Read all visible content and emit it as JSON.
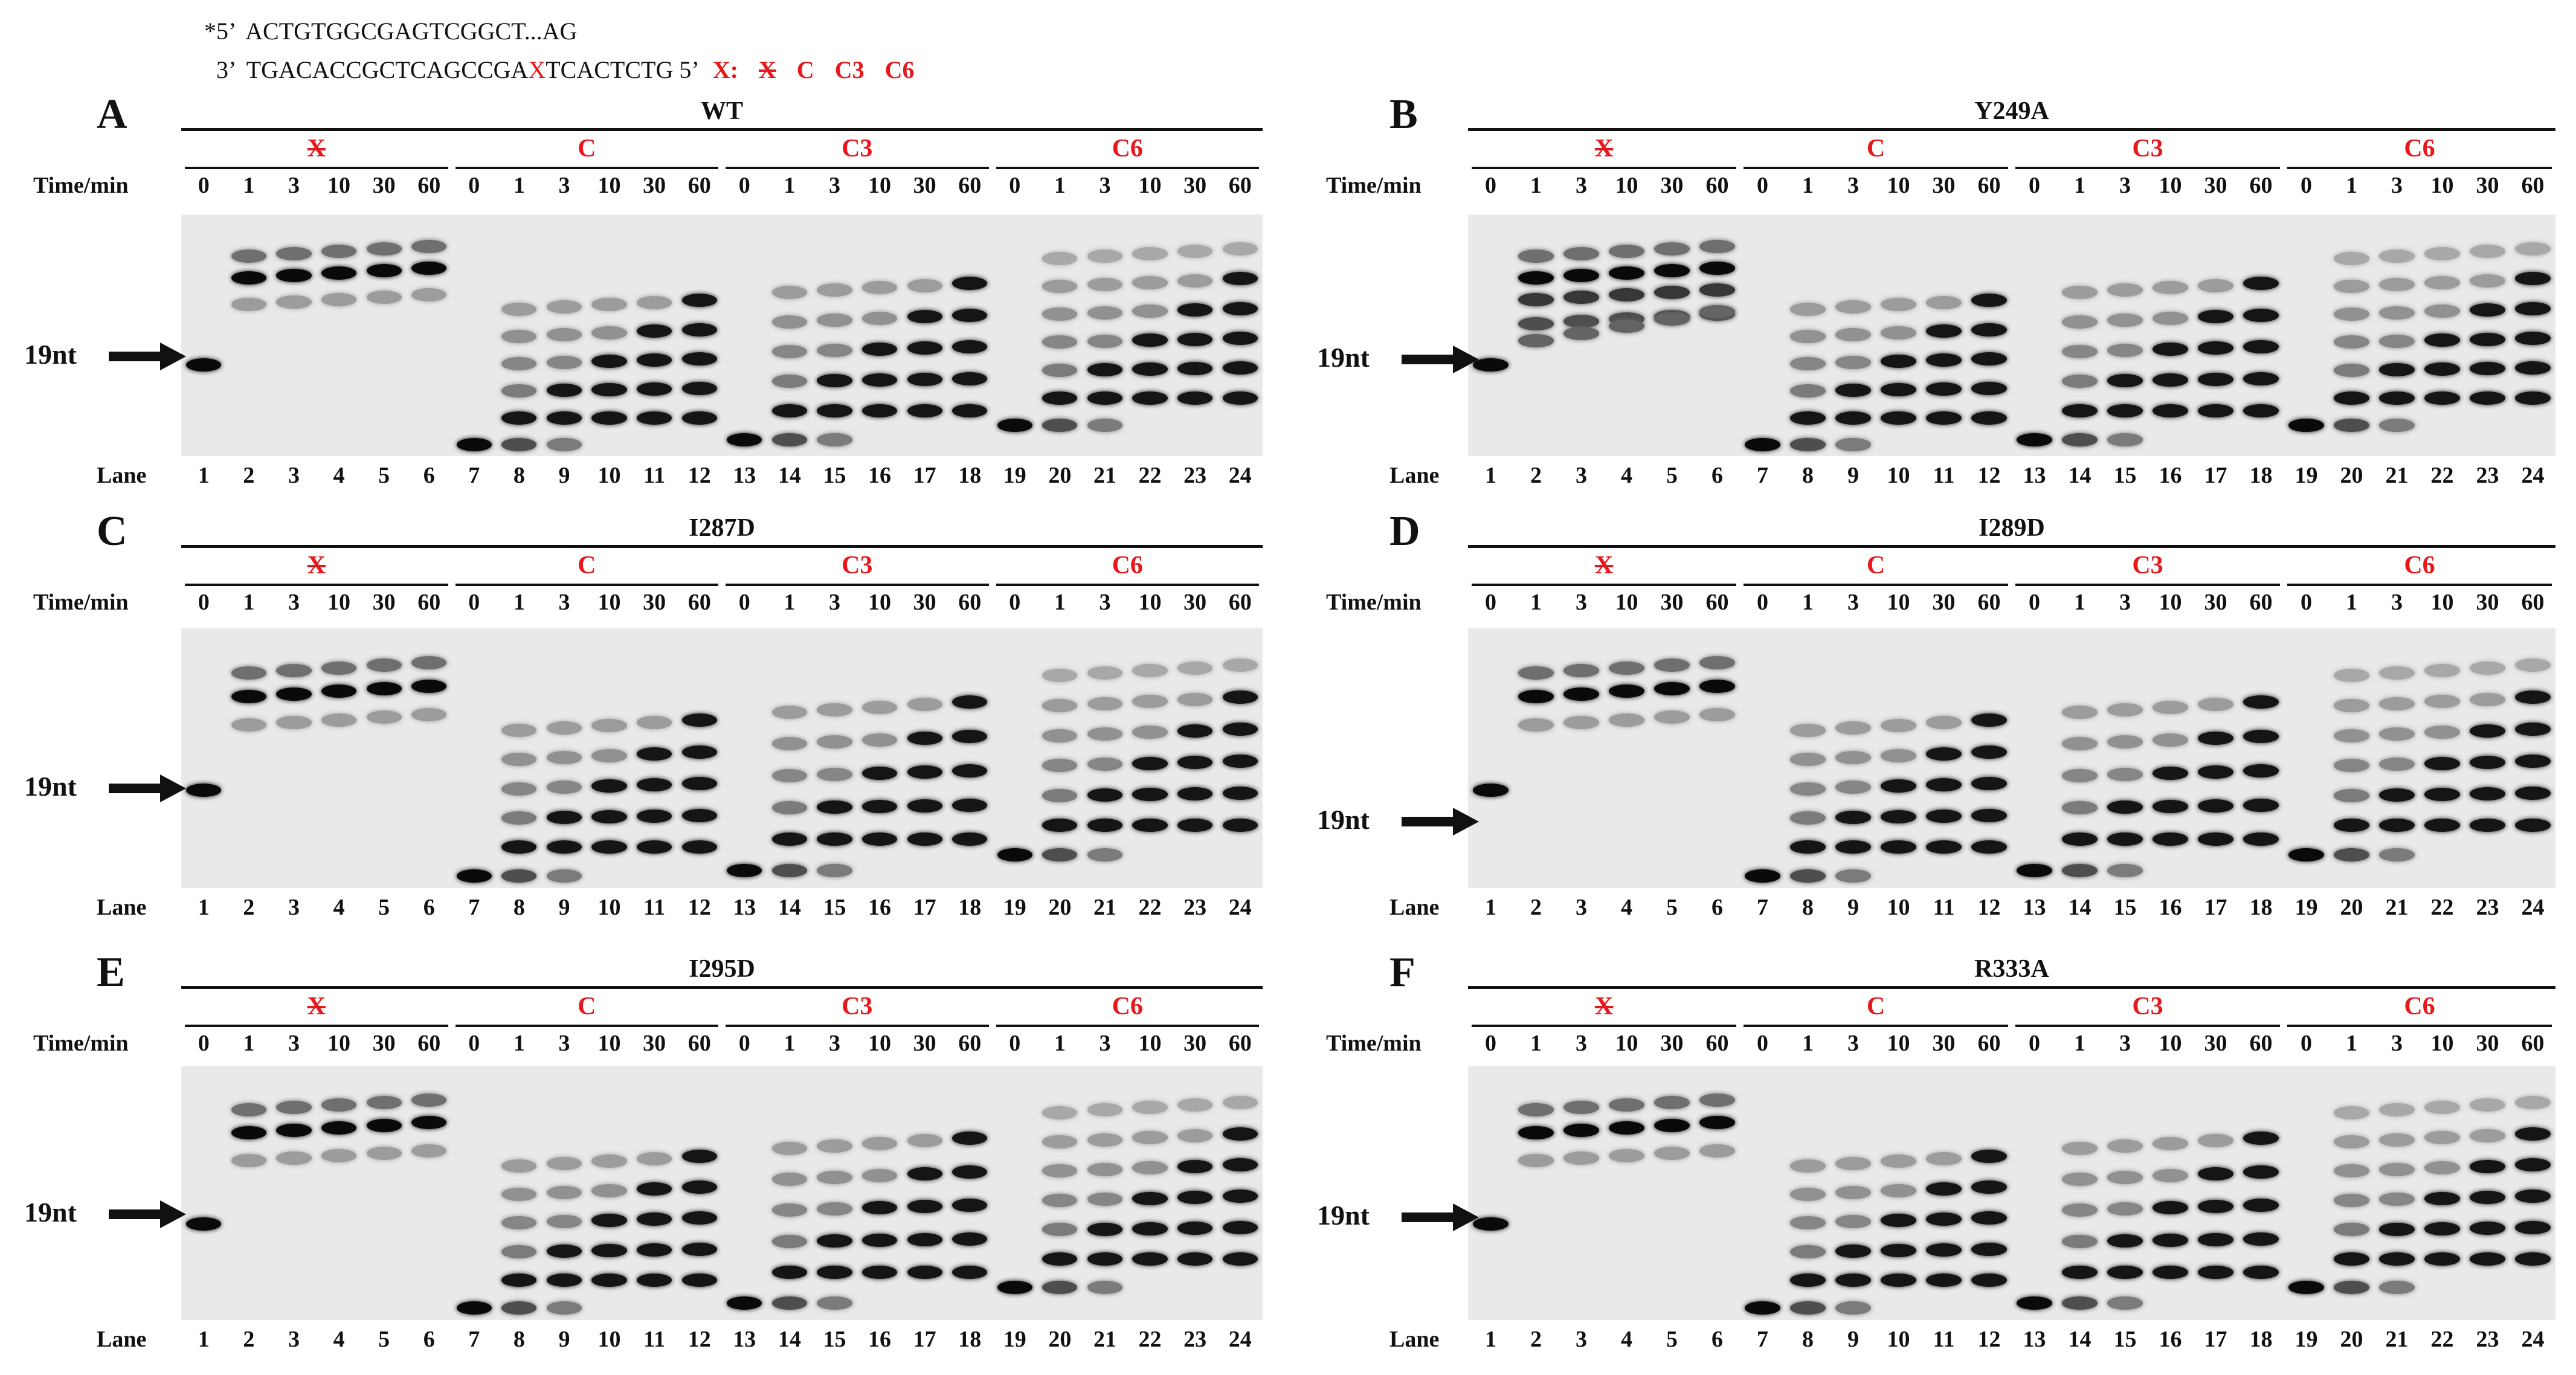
{
  "sequence": {
    "top_strand": "*5’  ACTGTGGCGAGTCGGCT...AG",
    "bottom_prefix": "3’  TGACACCGCTCAGCCGA",
    "bottom_x": "X",
    "bottom_suffix": "TCACTCTG 5’",
    "legend_label": "X:",
    "legend_codes": [
      "X",
      "C",
      "C3",
      "C6"
    ]
  },
  "common": {
    "time_label": "Time/min",
    "lane_label": "Lane",
    "marker_label": "19nt",
    "groups": [
      "X",
      "C",
      "C3",
      "C6"
    ],
    "times": [
      "0",
      "1",
      "3",
      "10",
      "30",
      "60"
    ],
    "lanes": [
      "1",
      "2",
      "3",
      "4",
      "5",
      "6",
      "7",
      "8",
      "9",
      "10",
      "11",
      "12",
      "13",
      "14",
      "15",
      "16",
      "17",
      "18",
      "19",
      "20",
      "21",
      "22",
      "23",
      "24"
    ]
  },
  "panels": [
    {
      "letter": "A",
      "mutant": "WT"
    },
    {
      "letter": "B",
      "mutant": "Y249A"
    },
    {
      "letter": "C",
      "mutant": "I287D"
    },
    {
      "letter": "D",
      "mutant": "I289D"
    },
    {
      "letter": "E",
      "mutant": "I295D"
    },
    {
      "letter": "F",
      "mutant": "R333A"
    }
  ],
  "colors": {
    "accent_red": "#e8171b",
    "text": "#111111",
    "gel_bg": "#e9e9e9"
  }
}
